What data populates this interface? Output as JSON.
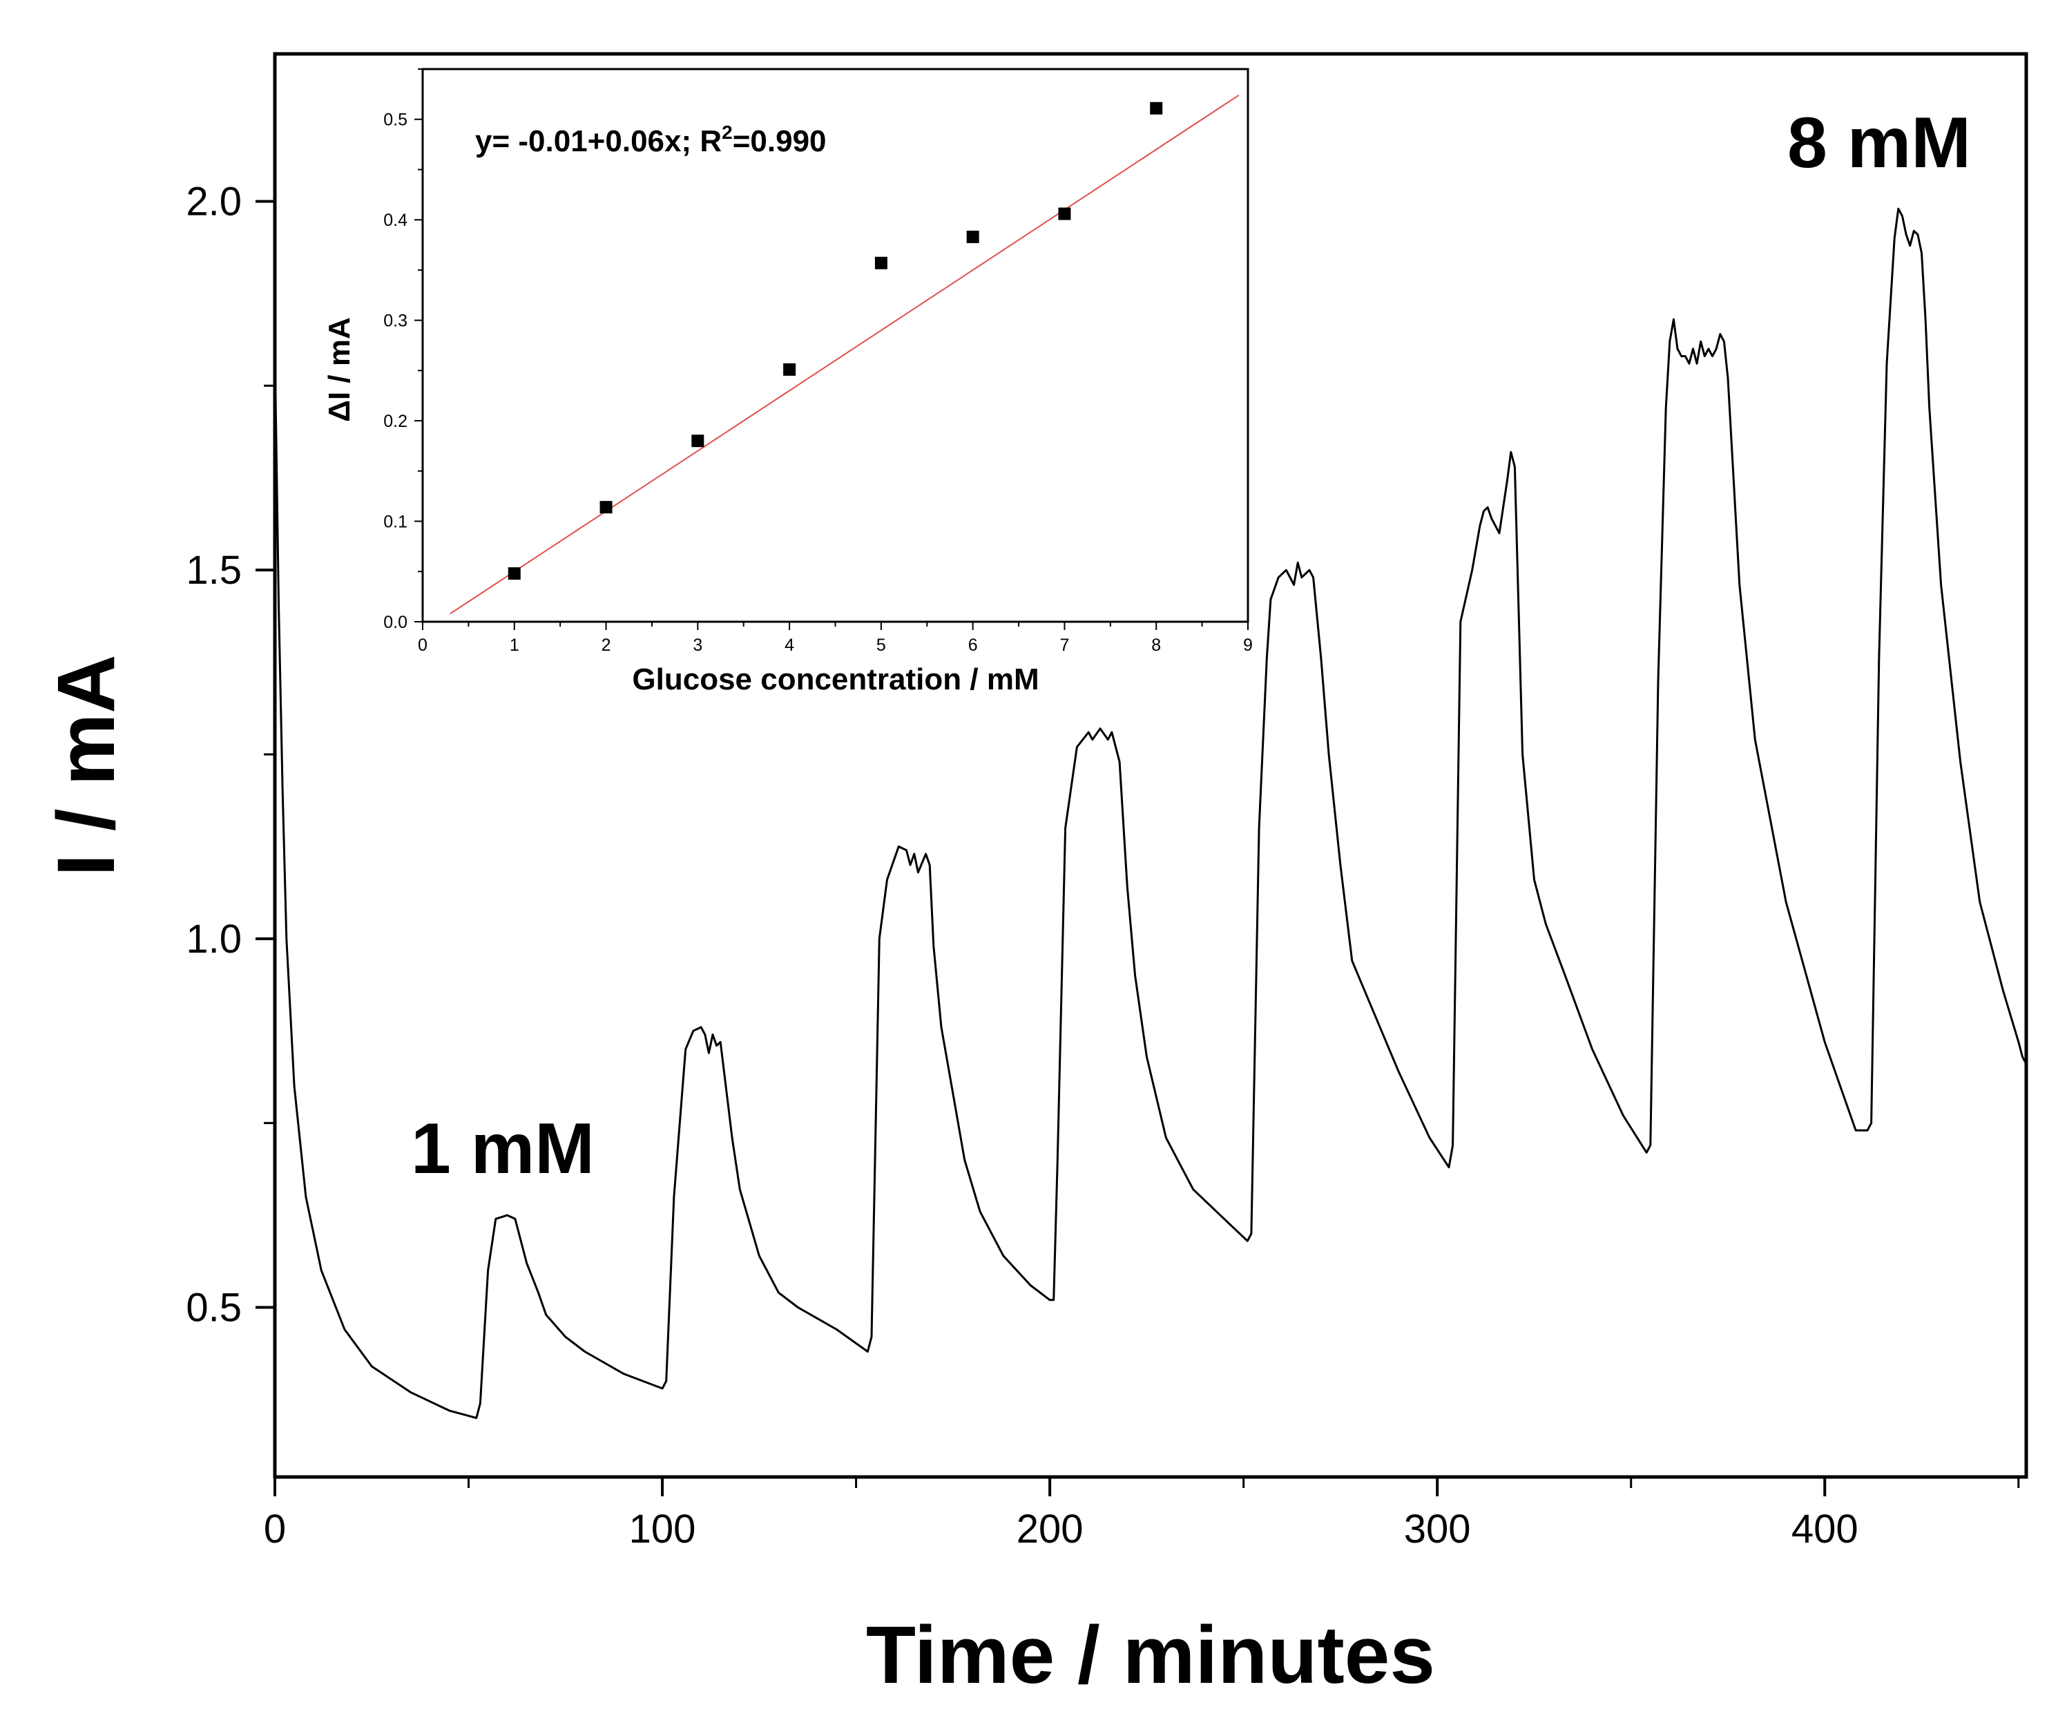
{
  "chart_data": [
    {
      "type": "line",
      "name": "main-amperometric-response",
      "xlabel": "Time / minutes",
      "ylabel": "I / mA",
      "xlim": [
        0,
        452
      ],
      "ylim": [
        0.27,
        2.2
      ],
      "xticks": [
        0,
        100,
        200,
        300,
        400
      ],
      "xtick_labels": [
        "0",
        "100",
        "200",
        "300",
        "400"
      ],
      "yticks": [
        0.5,
        1.0,
        1.5,
        2.0
      ],
      "ytick_labels": [
        "0.5",
        "1.0",
        "1.5",
        "2.0"
      ],
      "grid": false,
      "annotations": [
        {
          "text": "1 mM",
          "x": 60,
          "y": 0.7
        },
        {
          "text": "8 mM",
          "x": 415,
          "y": 2.07
        }
      ],
      "series": [
        {
          "name": "current",
          "x": [
            0,
            1,
            2,
            3,
            5,
            8,
            12,
            18,
            25,
            35,
            45,
            52,
            53,
            55,
            57,
            60,
            62,
            63,
            65,
            68,
            70,
            75,
            80,
            90,
            100,
            101,
            103,
            106,
            108,
            110,
            111,
            112,
            113,
            114,
            115,
            118,
            120,
            125,
            130,
            135,
            145,
            153,
            154,
            156,
            158,
            160,
            161,
            163,
            164,
            165,
            166,
            168,
            169,
            170,
            172,
            175,
            178,
            182,
            188,
            195,
            200,
            201,
            202,
            204,
            207,
            210,
            211,
            213,
            215,
            216,
            217,
            218,
            220,
            222,
            225,
            230,
            237,
            245,
            251,
            252,
            254,
            256,
            257,
            259,
            261,
            263,
            264,
            265,
            267,
            268,
            270,
            272,
            275,
            278,
            282,
            290,
            298,
            303,
            304,
            306,
            309,
            311,
            312,
            313,
            314,
            316,
            318,
            319,
            320,
            322,
            325,
            328,
            333,
            340,
            348,
            354,
            355,
            357,
            359,
            360,
            361,
            362,
            363,
            364,
            365,
            366,
            367,
            368,
            369,
            370,
            371,
            372,
            373,
            374,
            375,
            378,
            382,
            390,
            400,
            408,
            411,
            412,
            414,
            416,
            418,
            419,
            420,
            421,
            422,
            423,
            424,
            425,
            426,
            427,
            430,
            435,
            440,
            446,
            450,
            451,
            452
          ],
          "y": [
            1.8,
            1.45,
            1.2,
            1.0,
            0.8,
            0.65,
            0.55,
            0.47,
            0.42,
            0.385,
            0.36,
            0.35,
            0.37,
            0.55,
            0.62,
            0.625,
            0.62,
            0.6,
            0.56,
            0.52,
            0.49,
            0.46,
            0.44,
            0.41,
            0.39,
            0.4,
            0.65,
            0.85,
            0.875,
            0.88,
            0.87,
            0.845,
            0.87,
            0.855,
            0.86,
            0.73,
            0.66,
            0.57,
            0.52,
            0.5,
            0.47,
            0.44,
            0.46,
            1.0,
            1.08,
            1.11,
            1.125,
            1.12,
            1.1,
            1.115,
            1.09,
            1.115,
            1.1,
            0.99,
            0.88,
            0.79,
            0.7,
            0.63,
            0.57,
            0.53,
            0.51,
            0.51,
            0.7,
            1.15,
            1.26,
            1.28,
            1.27,
            1.285,
            1.27,
            1.28,
            1.26,
            1.24,
            1.07,
            0.95,
            0.84,
            0.73,
            0.66,
            0.62,
            0.59,
            0.6,
            1.15,
            1.38,
            1.46,
            1.49,
            1.5,
            1.48,
            1.51,
            1.49,
            1.5,
            1.49,
            1.38,
            1.25,
            1.1,
            0.97,
            0.92,
            0.82,
            0.73,
            0.69,
            0.72,
            1.43,
            1.5,
            1.56,
            1.58,
            1.585,
            1.57,
            1.55,
            1.62,
            1.66,
            1.64,
            1.25,
            1.08,
            1.02,
            0.95,
            0.85,
            0.76,
            0.71,
            0.72,
            1.35,
            1.72,
            1.81,
            1.84,
            1.8,
            1.79,
            1.79,
            1.78,
            1.8,
            1.78,
            1.81,
            1.79,
            1.8,
            1.79,
            1.8,
            1.82,
            1.81,
            1.76,
            1.48,
            1.27,
            1.05,
            0.86,
            0.74,
            0.74,
            0.75,
            1.38,
            1.78,
            1.95,
            1.99,
            1.98,
            1.955,
            1.94,
            1.96,
            1.955,
            1.93,
            1.84,
            1.72,
            1.48,
            1.24,
            1.05,
            0.93,
            0.86,
            0.84,
            0.83
          ]
        }
      ]
    },
    {
      "type": "scatter",
      "name": "inset-calibration",
      "xlabel": "Glucose concentration / mM",
      "ylabel": "ΔI / mA",
      "xlim": [
        0,
        9
      ],
      "ylim": [
        0,
        0.55
      ],
      "xticks": [
        0,
        1,
        2,
        3,
        4,
        5,
        6,
        7,
        8,
        9
      ],
      "xtick_labels": [
        "0",
        "1",
        "2",
        "3",
        "4",
        "5",
        "6",
        "7",
        "8",
        "9"
      ],
      "yticks": [
        0.0,
        0.1,
        0.2,
        0.3,
        0.4,
        0.5
      ],
      "ytick_labels": [
        "0.0",
        "0.1",
        "0.2",
        "0.3",
        "0.4",
        "0.5"
      ],
      "grid": false,
      "x": [
        1,
        2,
        3,
        4,
        5,
        6,
        7,
        8
      ],
      "y": [
        0.048,
        0.114,
        0.18,
        0.251,
        0.357,
        0.383,
        0.406,
        0.511
      ],
      "fit": {
        "intercept": -0.01,
        "slope": 0.06,
        "color": "#e05050",
        "x_range": [
          0.3,
          8.9
        ]
      },
      "equation_prefix": "y= -0.01+0.06x; R",
      "equation_sup": "2",
      "equation_suffix": "=0.990"
    }
  ]
}
